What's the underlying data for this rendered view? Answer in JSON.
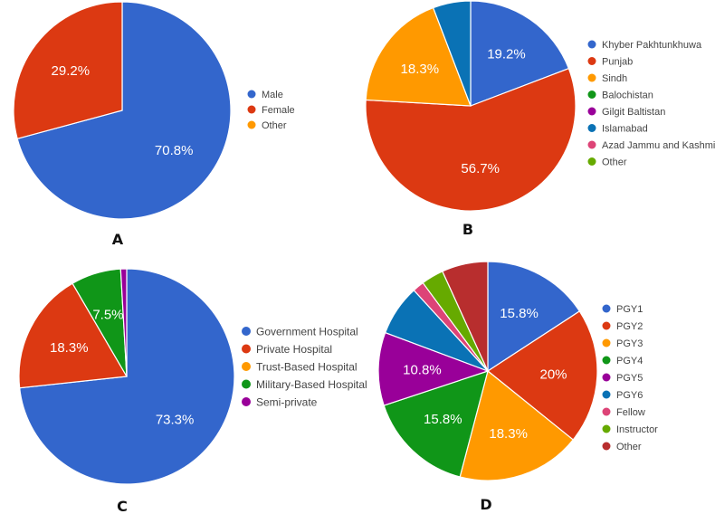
{
  "chart_data": [
    {
      "type": "pie",
      "panel": "A",
      "title": "",
      "slices": [
        {
          "label": "Male",
          "value": 70.8,
          "color": "#3366cc",
          "display": "70.8%"
        },
        {
          "label": "Female",
          "value": 29.2,
          "color": "#dc3912",
          "display": "29.2%"
        },
        {
          "label": "Other",
          "value": 0,
          "color": "#ff9900",
          "display": ""
        }
      ]
    },
    {
      "type": "pie",
      "panel": "B",
      "title": "",
      "slices": [
        {
          "label": "Khyber Pakhtunkhuwa",
          "value": 19.2,
          "color": "#3366cc",
          "display": "19.2%"
        },
        {
          "label": "Punjab",
          "value": 56.7,
          "color": "#dc3912",
          "display": "56.7%"
        },
        {
          "label": "Sindh",
          "value": 18.3,
          "color": "#ff9900",
          "display": "18.3%"
        },
        {
          "label": "Balochistan",
          "value": 0,
          "color": "#109618",
          "display": ""
        },
        {
          "label": "Gilgit Baltistan",
          "value": 0,
          "color": "#990099",
          "display": ""
        },
        {
          "label": "Islamabad",
          "value": 5.8,
          "color": "#0a72b5",
          "display": ""
        },
        {
          "label": "Azad Jammu and Kashmir",
          "value": 0,
          "color": "#dd4477",
          "display": ""
        },
        {
          "label": "Other",
          "value": 0,
          "color": "#66aa00",
          "display": ""
        }
      ]
    },
    {
      "type": "pie",
      "panel": "C",
      "title": "",
      "slices": [
        {
          "label": "Government Hospital",
          "value": 73.3,
          "color": "#3366cc",
          "display": "73.3%"
        },
        {
          "label": "Private Hospital",
          "value": 18.3,
          "color": "#dc3912",
          "display": "18.3%"
        },
        {
          "label": "Trust-Based Hospital",
          "value": 0,
          "color": "#ff9900",
          "display": ""
        },
        {
          "label": "Military-Based Hospital",
          "value": 7.5,
          "color": "#109618",
          "display": "7.5%"
        },
        {
          "label": "Semi-private",
          "value": 0.9,
          "color": "#990099",
          "display": ""
        }
      ]
    },
    {
      "type": "pie",
      "panel": "D",
      "title": "",
      "slices": [
        {
          "label": "PGY1",
          "value": 15.8,
          "color": "#3366cc",
          "display": "15.8%"
        },
        {
          "label": "PGY2",
          "value": 20,
          "color": "#dc3912",
          "display": "20%"
        },
        {
          "label": "PGY3",
          "value": 18.3,
          "color": "#ff9900",
          "display": "18.3%"
        },
        {
          "label": "PGY4",
          "value": 15.8,
          "color": "#109618",
          "display": "15.8%"
        },
        {
          "label": "PGY5",
          "value": 10.8,
          "color": "#990099",
          "display": "10.8%"
        },
        {
          "label": "PGY6",
          "value": 7.5,
          "color": "#0a72b5",
          "display": ""
        },
        {
          "label": "Fellow",
          "value": 1.7,
          "color": "#dd4477",
          "display": ""
        },
        {
          "label": "Instructor",
          "value": 3.3,
          "color": "#66aa00",
          "display": ""
        },
        {
          "label": "Other",
          "value": 6.8,
          "color": "#b82e2e",
          "display": ""
        }
      ]
    }
  ]
}
